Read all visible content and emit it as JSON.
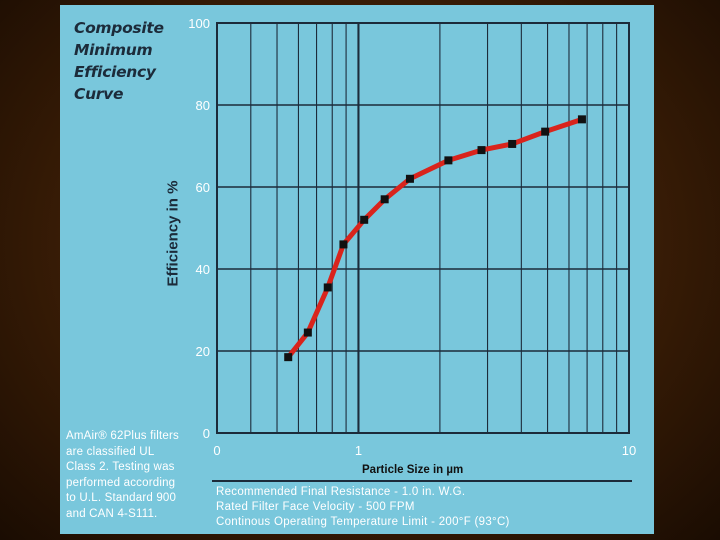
{
  "title_lines": [
    "Composite",
    "Minimum",
    "Efficiency",
    "Curve"
  ],
  "note_lines": [
    "AmAir® 62Plus filters",
    "are classified UL",
    "Class 2.  Testing was",
    "performed according",
    "to U.L. Standard 900",
    "and CAN 4-S111."
  ],
  "spec_lines": [
    "Recommended Final Resistance - 1.0 in. W.G.",
    "Rated Filter Face Velocity - 500 FPM",
    "Continous Operating Temperature Limit - 200°F (93°C)"
  ],
  "colors": {
    "background": "#79c7dc",
    "grid": "#1c2b3a",
    "series": "#d9241c",
    "marker": "#111111"
  },
  "chart_data": {
    "type": "line",
    "title": "Composite Minimum Efficiency Curve",
    "xlabel": "Particle Size in µm",
    "ylabel": "Efficiency in %",
    "x_scale": "log",
    "xlim": [
      0.3,
      10
    ],
    "ylim": [
      0,
      100
    ],
    "x_ticks": [
      {
        "value": 0.3,
        "label": "0"
      },
      {
        "value": 1,
        "label": "1"
      },
      {
        "value": 10,
        "label": "10"
      }
    ],
    "y_ticks": [
      0,
      20,
      40,
      60,
      80,
      100
    ],
    "grid": true,
    "series": [
      {
        "x": [
          0.55,
          0.65,
          0.77,
          0.88,
          1.05,
          1.25,
          1.55,
          2.15,
          2.85,
          3.7,
          4.9,
          6.7
        ],
        "y": [
          18.5,
          24.5,
          35.5,
          46,
          52,
          57,
          62,
          66.5,
          69,
          70.5,
          73.5,
          76.5
        ]
      }
    ]
  }
}
